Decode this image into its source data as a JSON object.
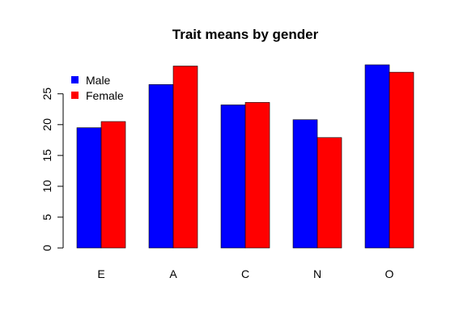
{
  "chart_data": {
    "type": "bar",
    "title": "Trait means by gender",
    "xlabel": "",
    "ylabel": "",
    "categories": [
      "E",
      "A",
      "C",
      "N",
      "O"
    ],
    "series": [
      {
        "name": "Male",
        "color": "#0000ff",
        "values": [
          19.5,
          26.5,
          23.2,
          20.8,
          29.7
        ]
      },
      {
        "name": "Female",
        "color": "#ff0000",
        "values": [
          20.5,
          29.5,
          23.6,
          17.9,
          28.5
        ]
      }
    ],
    "yticks": [
      0,
      5,
      10,
      15,
      20,
      25
    ],
    "ylim": [
      0,
      30
    ],
    "grid": false,
    "legend_position": "top-left"
  }
}
